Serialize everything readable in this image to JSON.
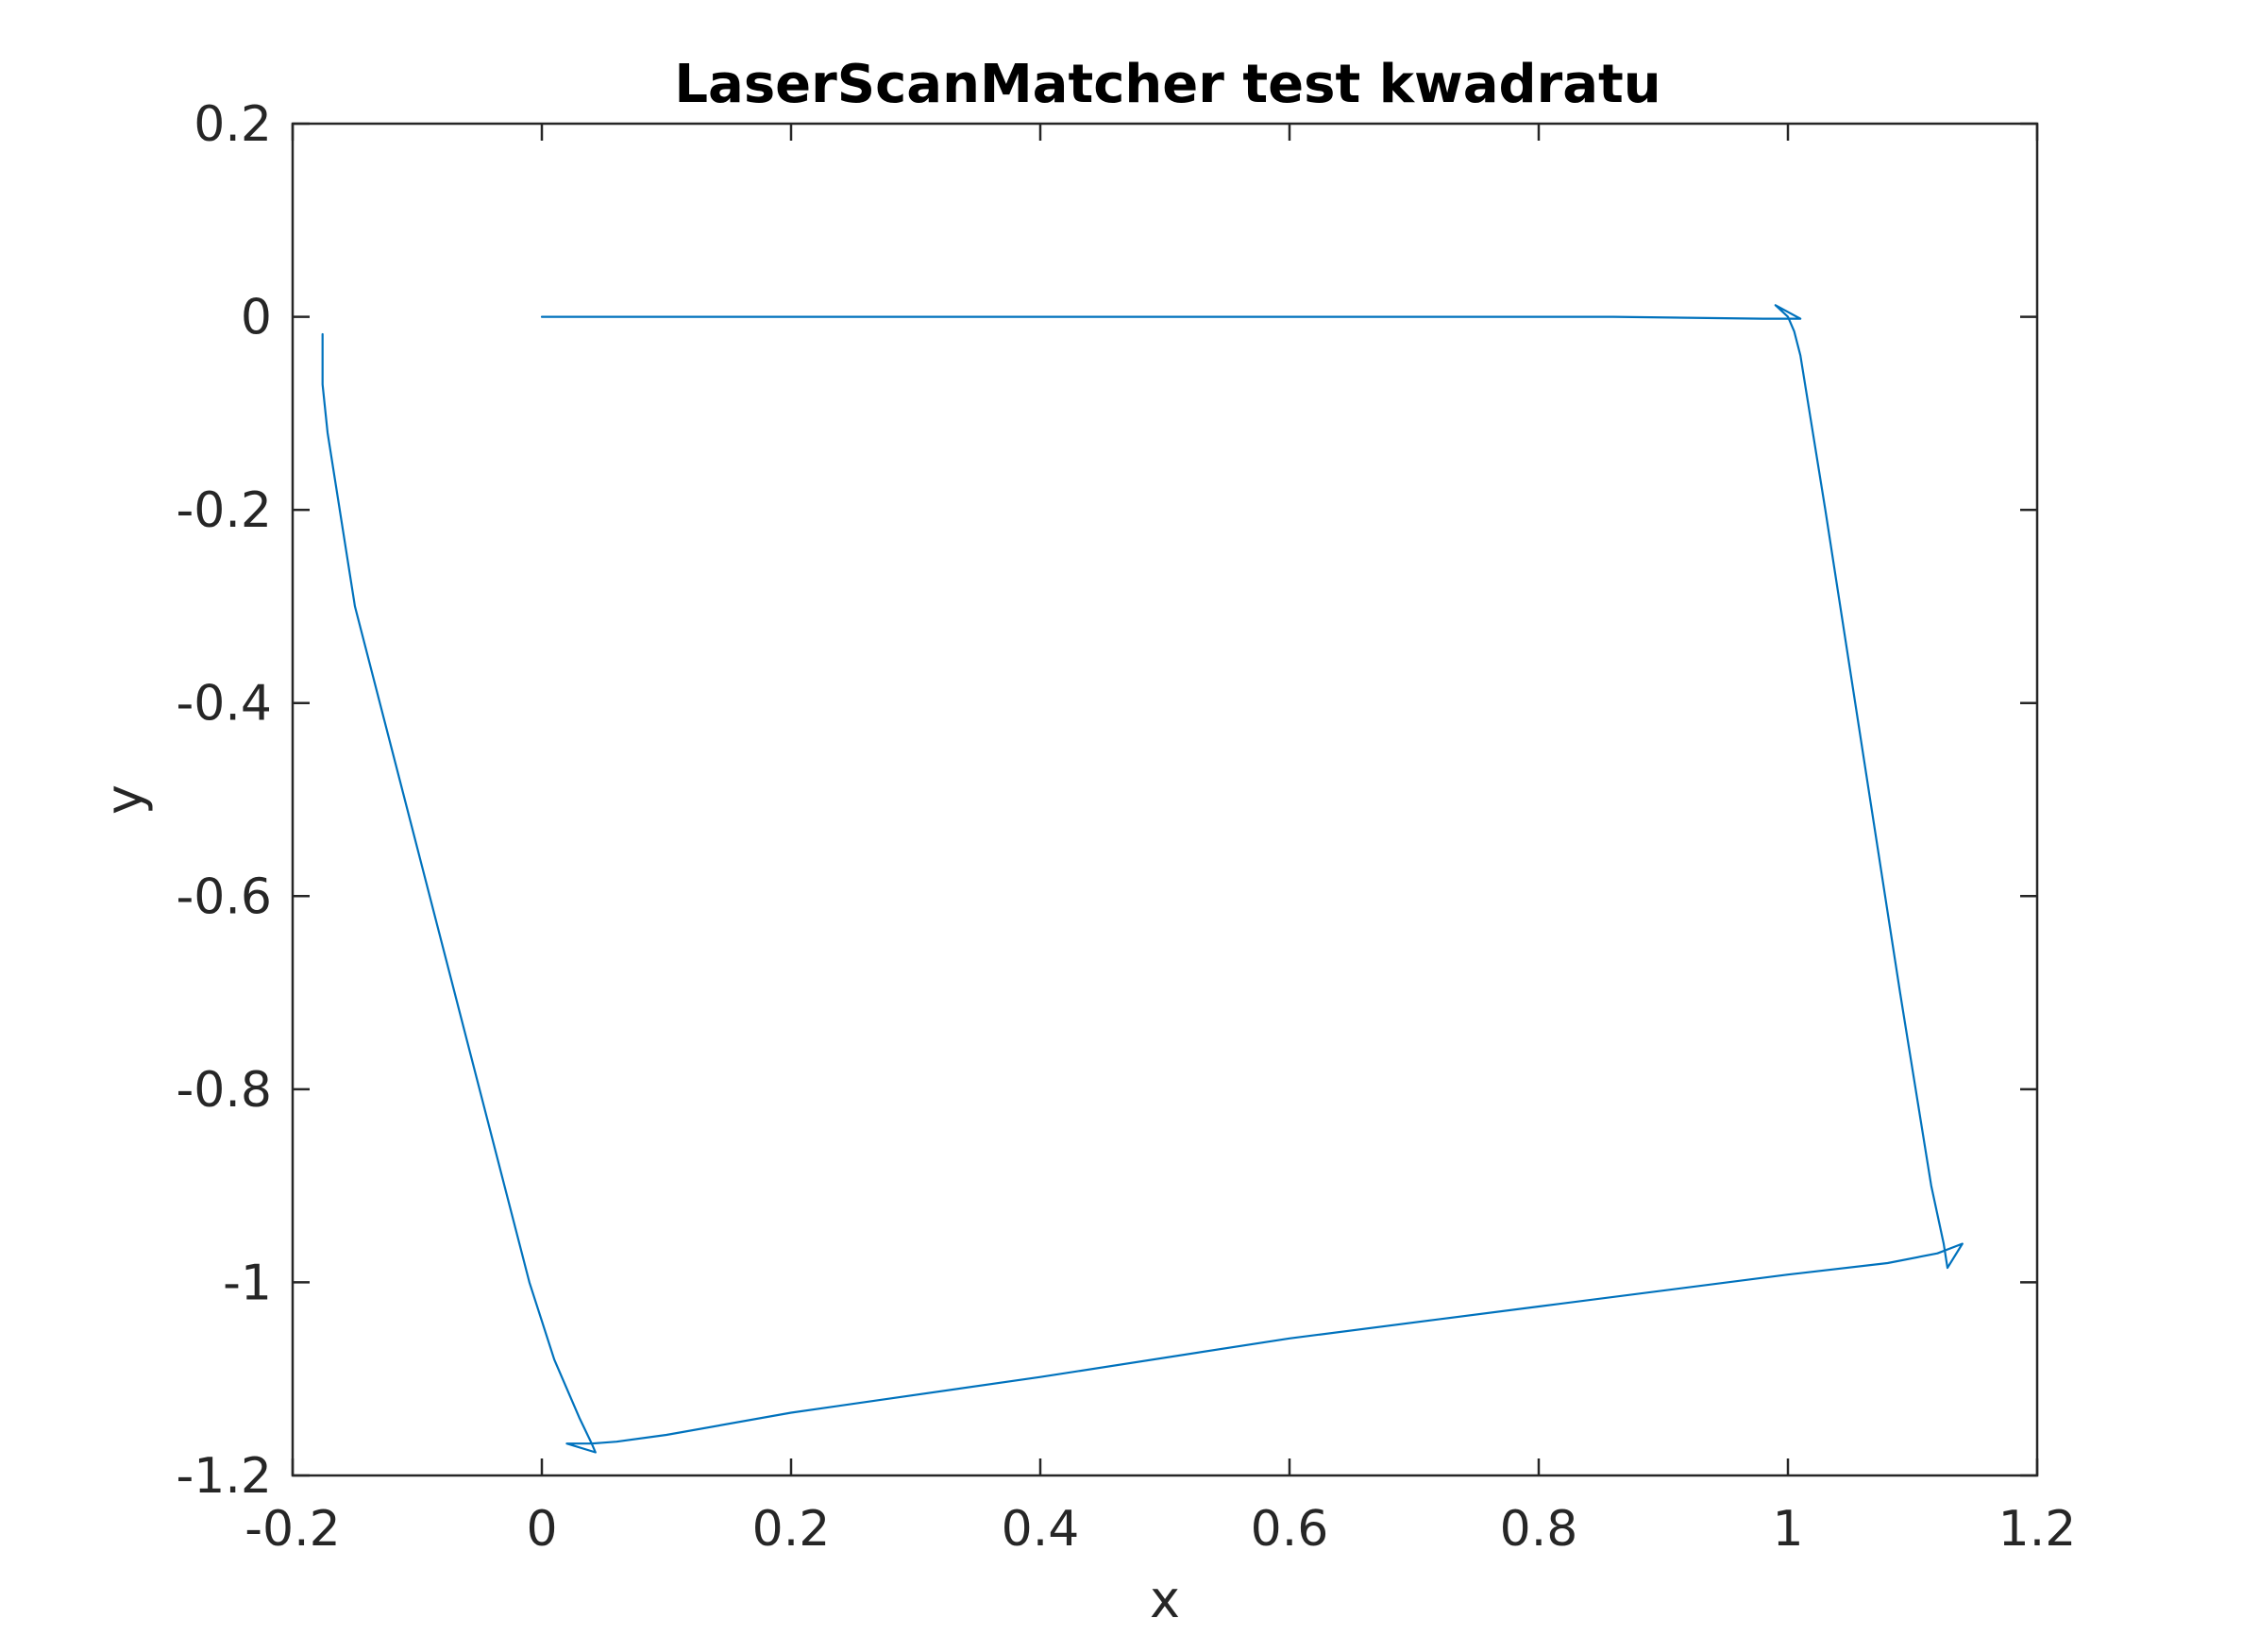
{
  "chart_data": {
    "type": "line",
    "title": "LaserScanMatcher test kwadratu",
    "xlabel": "x",
    "ylabel": "y",
    "xlim": [
      -0.2,
      1.2
    ],
    "ylim": [
      -1.2,
      0.2
    ],
    "xticks": [
      "-0.2",
      "0",
      "0.2",
      "0.4",
      "0.6",
      "0.8",
      "1",
      "1.2"
    ],
    "yticks": [
      "0.2",
      "0",
      "-0.2",
      "-0.4",
      "-0.6",
      "-0.8",
      "-1",
      "-1.2"
    ],
    "grid": false,
    "legend": "none",
    "series": [
      {
        "color": "#0072BD",
        "x": [
          0.0,
          0.3,
          0.6,
          0.86,
          0.98,
          1.01,
          0.99,
          1.0,
          1.005,
          1.01,
          1.03,
          1.06,
          1.09,
          1.115,
          1.125,
          1.128,
          1.14,
          1.12,
          1.08,
          1.0,
          0.8,
          0.6,
          0.4,
          0.2,
          0.1,
          0.06,
          0.04,
          0.02,
          0.043,
          0.04,
          0.03,
          0.01,
          -0.01,
          -0.05,
          -0.1,
          -0.15,
          -0.172,
          -0.176,
          -0.176
        ],
        "y": [
          0.0,
          0.0,
          0.0,
          0.0,
          -0.002,
          -0.002,
          0.012,
          0.0,
          -0.015,
          -0.04,
          -0.2,
          -0.45,
          -0.7,
          -0.9,
          -0.96,
          -0.985,
          -0.96,
          -0.97,
          -0.98,
          -0.992,
          -1.025,
          -1.058,
          -1.098,
          -1.135,
          -1.158,
          -1.165,
          -1.167,
          -1.167,
          -1.176,
          -1.167,
          -1.14,
          -1.08,
          -1.0,
          -0.8,
          -0.55,
          -0.3,
          -0.12,
          -0.07,
          -0.018
        ]
      }
    ]
  }
}
